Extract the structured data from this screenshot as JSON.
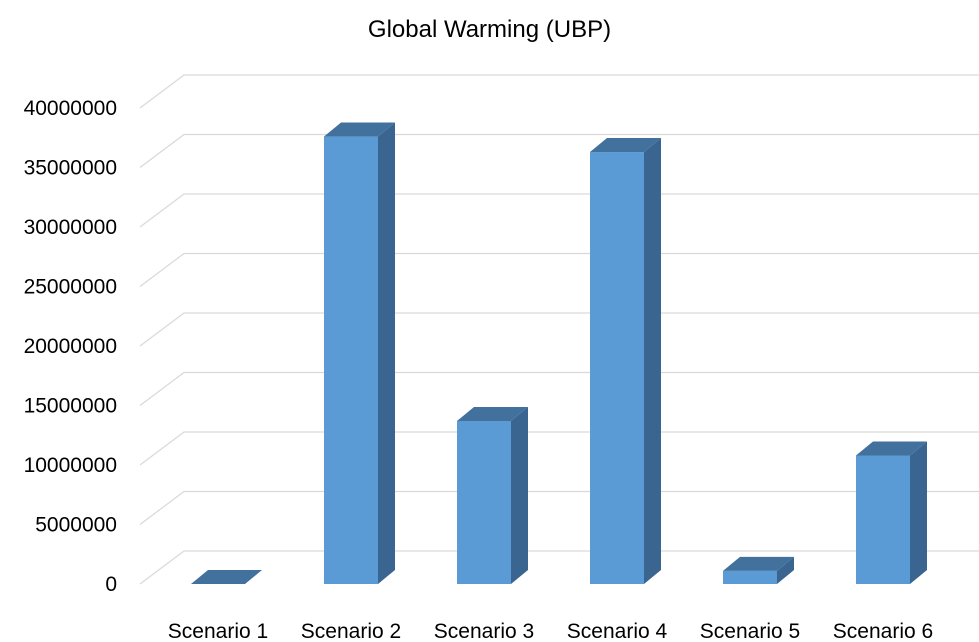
{
  "chart_data": {
    "type": "bar",
    "title": "Global Warming (UBP)",
    "xlabel": "",
    "ylabel": "",
    "categories": [
      "Scenario 1",
      "Scenario 2",
      "Scenario 3",
      "Scenario 4",
      "Scenario 5",
      "Scenario 6"
    ],
    "values": [
      0,
      37600000,
      13700000,
      36300000,
      1100000,
      10800000
    ],
    "ylim": [
      0,
      40000000
    ],
    "yticks": [
      0,
      5000000,
      10000000,
      15000000,
      20000000,
      25000000,
      30000000,
      35000000,
      40000000
    ],
    "grid": true,
    "legend": "none",
    "style": "3d-column",
    "colors": {
      "bar_front": "#5B9BD5",
      "bar_side": "#3A6590",
      "bar_top": "#41719C",
      "grid": "#D9D9D9"
    }
  }
}
